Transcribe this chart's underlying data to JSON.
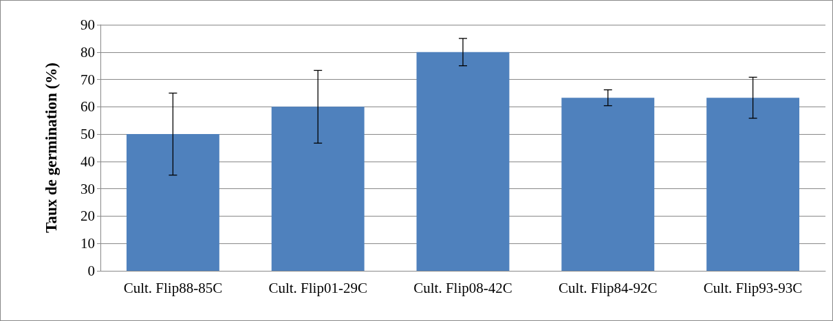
{
  "chart_data": {
    "type": "bar",
    "ylabel": "Taux de germination (%)",
    "categories": [
      "Cult. Flip88-85C",
      "Cult. Flip01-29C",
      "Cult. Flip08-42C",
      "Cult. Flip84-92C",
      "Cult. Flip93-93C"
    ],
    "series": [
      {
        "color": "#4f81bd",
        "values": [
          50,
          60,
          80,
          63.3,
          63.3
        ],
        "errors": [
          15,
          13.3,
          5,
          2.9,
          7.5
        ]
      }
    ],
    "ylim": [
      0,
      90
    ],
    "yticks": [
      0,
      10,
      20,
      30,
      40,
      50,
      60,
      70,
      80,
      90
    ],
    "grid": "y"
  }
}
